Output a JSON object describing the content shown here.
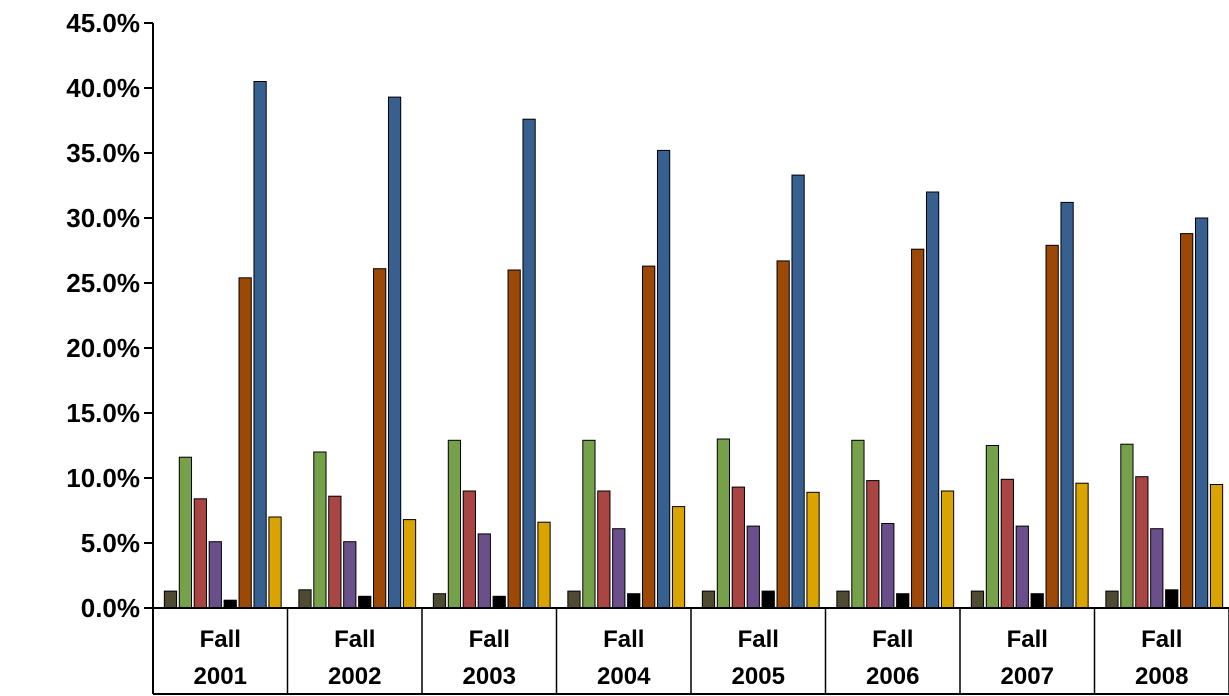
{
  "chart_data": {
    "type": "bar",
    "title": "",
    "xlabel": "",
    "ylabel": "",
    "ylim": [
      0,
      45
    ],
    "y_tick_step": 5,
    "y_tick_labels": [
      "0.0%",
      "5.0%",
      "10.0%",
      "15.0%",
      "20.0%",
      "25.0%",
      "30.0%",
      "35.0%",
      "40.0%",
      "45.0%"
    ],
    "categories": [
      [
        "Fall",
        "2001"
      ],
      [
        "Fall",
        "2002"
      ],
      [
        "Fall",
        "2003"
      ],
      [
        "Fall",
        "2004"
      ],
      [
        "Fall",
        "2005"
      ],
      [
        "Fall",
        "2006"
      ],
      [
        "Fall",
        "2007"
      ],
      [
        "Fall",
        "2008"
      ]
    ],
    "grid": false,
    "legend": "none",
    "series": [
      {
        "color": "#4f4b32",
        "values": [
          1.3,
          1.4,
          1.1,
          1.3,
          1.3,
          1.3,
          1.3,
          1.3
        ]
      },
      {
        "color": "#77a04a",
        "values": [
          11.6,
          12.0,
          12.9,
          12.9,
          13.0,
          12.9,
          12.5,
          12.6
        ]
      },
      {
        "color": "#a94543",
        "values": [
          8.4,
          8.6,
          9.0,
          9.0,
          9.3,
          9.8,
          9.9,
          10.1
        ]
      },
      {
        "color": "#6a4f8a",
        "values": [
          5.1,
          5.1,
          5.7,
          6.1,
          6.3,
          6.5,
          6.3,
          6.1
        ]
      },
      {
        "color": "#000000",
        "values": [
          0.6,
          0.9,
          0.9,
          1.1,
          1.3,
          1.1,
          1.1,
          1.4
        ]
      },
      {
        "color": "#9c4806",
        "values": [
          25.4,
          26.1,
          26.0,
          26.3,
          26.7,
          27.6,
          27.9,
          28.8
        ]
      },
      {
        "color": "#376091",
        "values": [
          40.5,
          39.3,
          37.6,
          35.2,
          33.3,
          32.0,
          31.2,
          30.0
        ]
      },
      {
        "color": "#d9a300",
        "values": [
          7.0,
          6.8,
          6.6,
          7.8,
          8.9,
          9.0,
          9.6,
          9.5
        ]
      }
    ]
  }
}
